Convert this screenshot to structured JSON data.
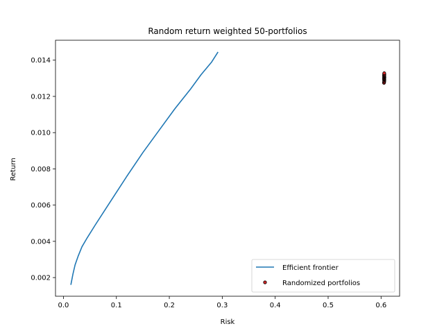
{
  "chart_data": {
    "type": "line",
    "title": "Random return weighted 50-portfolios",
    "xlabel": "Risk",
    "ylabel": "Return",
    "xlim": [
      -0.015,
      0.635
    ],
    "ylim": [
      0.00097,
      0.0151
    ],
    "xticks": [
      0.0,
      0.1,
      0.2,
      0.3,
      0.4,
      0.5,
      0.6
    ],
    "xtick_labels": [
      "0.0",
      "0.1",
      "0.2",
      "0.3",
      "0.4",
      "0.5",
      "0.6"
    ],
    "yticks": [
      0.002,
      0.004,
      0.006,
      0.008,
      0.01,
      0.012,
      0.014
    ],
    "ytick_labels": [
      "0.002",
      "0.004",
      "0.006",
      "0.008",
      "0.010",
      "0.012",
      "0.014"
    ],
    "grid": false,
    "legend_position": "bottom-right",
    "series": [
      {
        "name": "Efficient frontier",
        "kind": "line",
        "color": "#1f77b4",
        "x": [
          0.014,
          0.018,
          0.022,
          0.028,
          0.035,
          0.045,
          0.06,
          0.08,
          0.1,
          0.12,
          0.15,
          0.18,
          0.21,
          0.24,
          0.26,
          0.28,
          0.292
        ],
        "y": [
          0.0016,
          0.0022,
          0.0027,
          0.0032,
          0.0037,
          0.0042,
          0.0049,
          0.0058,
          0.0067,
          0.0076,
          0.0089,
          0.0101,
          0.0113,
          0.0124,
          0.0132,
          0.0139,
          0.01445
        ]
      },
      {
        "name": "Randomized portfolios",
        "kind": "scatter",
        "color": "#d62728",
        "edgecolor": "#000000",
        "x": [
          0.6055,
          0.606,
          0.6058,
          0.6062,
          0.6057,
          0.6061,
          0.6059,
          0.6056,
          0.6063,
          0.606,
          0.6058,
          0.6061,
          0.6057,
          0.6062,
          0.6059,
          0.606
        ],
        "y": [
          0.01275,
          0.0128,
          0.01285,
          0.0129,
          0.01293,
          0.01296,
          0.01299,
          0.01302,
          0.01305,
          0.01308,
          0.01311,
          0.01314,
          0.01317,
          0.0132,
          0.01324,
          0.01328
        ]
      }
    ]
  }
}
